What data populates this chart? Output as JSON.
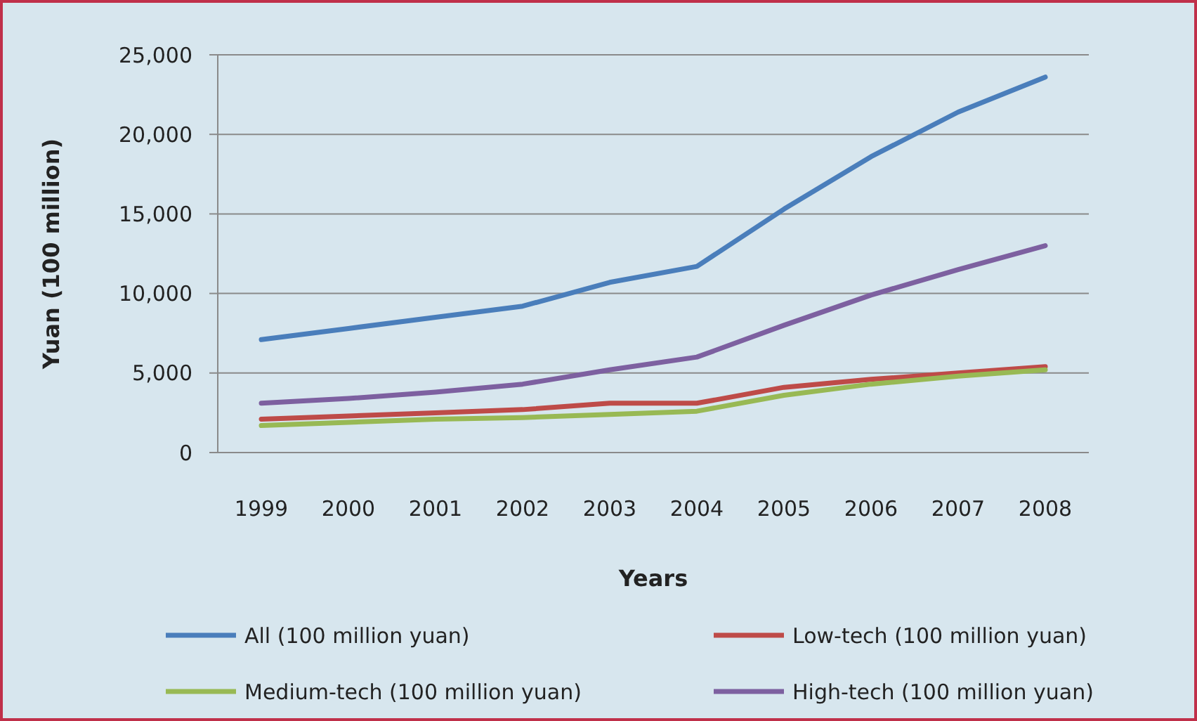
{
  "chart_data": {
    "type": "line",
    "xlabel": "Years",
    "ylabel": "Yuan (100 million)",
    "categories": [
      "1999",
      "2000",
      "2001",
      "2002",
      "2003",
      "2004",
      "2005",
      "2006",
      "2007",
      "2008"
    ],
    "series": [
      {
        "name": "All (100 million yuan)",
        "color": "#4a7ebb",
        "values": [
          7100,
          7800,
          8500,
          9200,
          10700,
          11700,
          15300,
          18600,
          21400,
          23600
        ]
      },
      {
        "name": "Low-tech (100 million yuan)",
        "color": "#be4b48",
        "values": [
          2100,
          2300,
          2500,
          2700,
          3100,
          3100,
          4100,
          4600,
          5000,
          5400
        ]
      },
      {
        "name": "Medium-tech (100 million yuan)",
        "color": "#98b954",
        "values": [
          1700,
          1900,
          2100,
          2200,
          2400,
          2600,
          3600,
          4300,
          4800,
          5200
        ]
      },
      {
        "name": "High-tech (100 million yuan)",
        "color": "#7d60a0",
        "values": [
          3100,
          3400,
          3800,
          4300,
          5200,
          6000,
          8000,
          9900,
          11500,
          13000
        ]
      }
    ],
    "ylim": [
      0,
      25000
    ],
    "yticks": [
      {
        "value": 0,
        "label": "0"
      },
      {
        "value": 5000,
        "label": "5,000"
      },
      {
        "value": 10000,
        "label": "10,000"
      },
      {
        "value": 15000,
        "label": "15,000"
      },
      {
        "value": 20000,
        "label": "20,000"
      },
      {
        "value": 25000,
        "label": "25,000"
      }
    ],
    "grid": "y",
    "legend": "bottom",
    "marker": "none",
    "line_style": "solid"
  }
}
